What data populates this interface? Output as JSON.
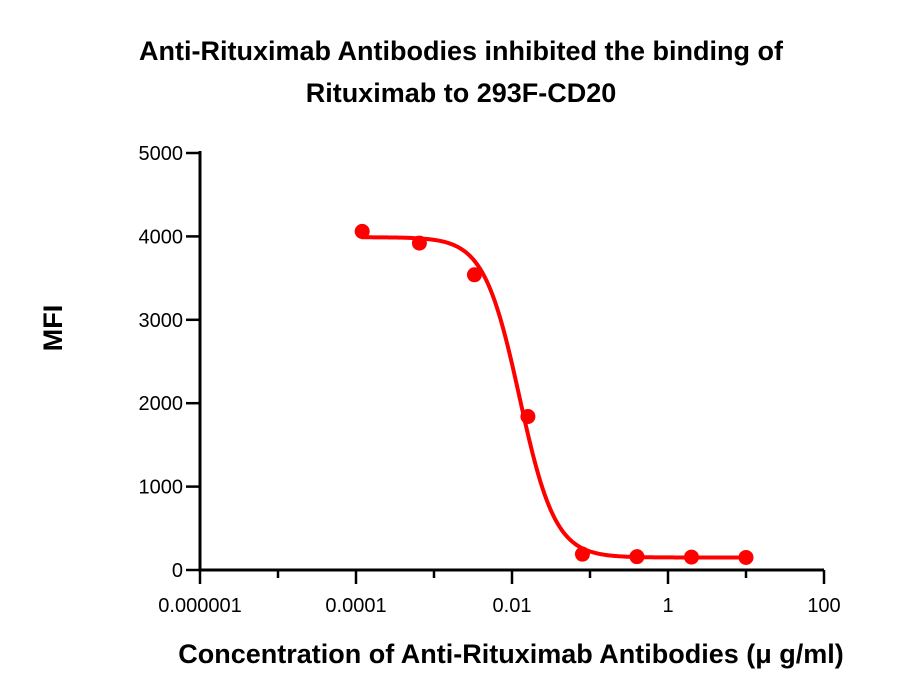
{
  "chart_data": {
    "type": "scatter",
    "title_lines": [
      "Anti-Rituximab Antibodies inhibited the binding of",
      "Rituximab to 293F-CD20"
    ],
    "xlabel": "Concentration of Anti-Rituximab Antibodies (μ g/ml)",
    "ylabel": "MFI",
    "xscale": "log",
    "xlim": [
      1e-06,
      100
    ],
    "ylim": [
      0,
      5000
    ],
    "xticks": [
      1e-06,
      0.0001,
      0.01,
      1,
      100
    ],
    "xtick_labels": [
      "0.000001",
      "0.0001",
      "0.01",
      "1",
      "100"
    ],
    "yticks": [
      0,
      1000,
      2000,
      3000,
      4000,
      5000
    ],
    "ytick_labels": [
      "0",
      "1000",
      "2000",
      "3000",
      "4000",
      "5000"
    ],
    "grid": false,
    "legend": "none",
    "series": [
      {
        "color": "#ff0000",
        "points": [
          {
            "x": 0.00012,
            "y": 4060
          },
          {
            "x": 0.00065,
            "y": 3920
          },
          {
            "x": 0.0033,
            "y": 3540
          },
          {
            "x": 0.016,
            "y": 1840
          },
          {
            "x": 0.08,
            "y": 190
          },
          {
            "x": 0.4,
            "y": 160
          },
          {
            "x": 2.0,
            "y": 155
          },
          {
            "x": 10,
            "y": 150
          }
        ],
        "fit": {
          "model": "four-parameter-logistic",
          "top": 3990,
          "bottom": 150,
          "ec50": 0.0125,
          "hill": 1.9,
          "x_range": [
            0.00012,
            10
          ]
        }
      }
    ]
  }
}
